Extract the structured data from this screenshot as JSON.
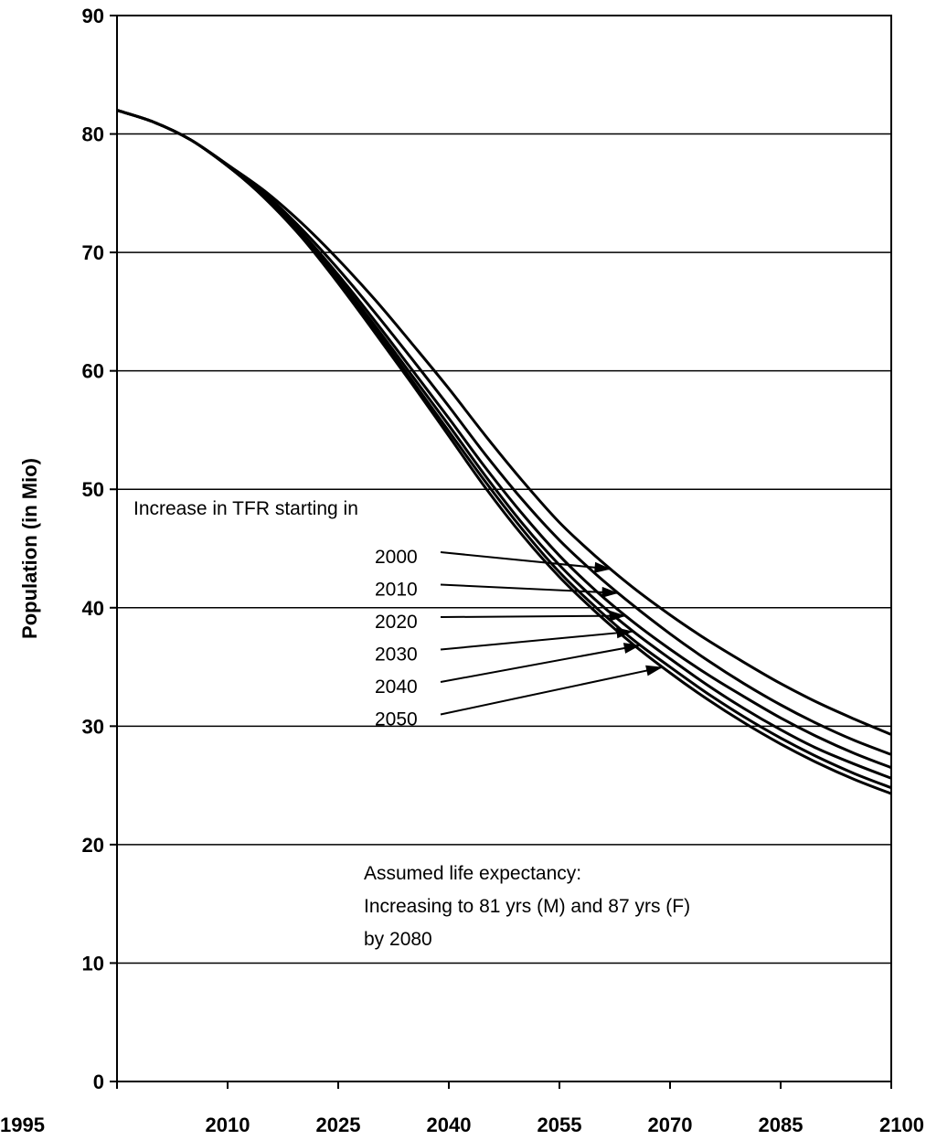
{
  "chart_data": {
    "type": "line",
    "xlabel": "",
    "ylabel": "Population (in Mio)",
    "xlim": [
      1995,
      2100
    ],
    "ylim": [
      0,
      90
    ],
    "x_ticks": [
      1995,
      2010,
      2025,
      2040,
      2055,
      2070,
      2085,
      2100
    ],
    "y_ticks": [
      0,
      10,
      20,
      30,
      40,
      50,
      60,
      70,
      80,
      90
    ],
    "grid": "horizontal",
    "legend_title": "Increase in TFR starting in",
    "x": [
      1995,
      2000,
      2005,
      2010,
      2015,
      2020,
      2025,
      2030,
      2035,
      2040,
      2045,
      2050,
      2055,
      2060,
      2065,
      2070,
      2075,
      2080,
      2085,
      2090,
      2095,
      2100
    ],
    "series": [
      {
        "name": "2000",
        "values": [
          82.0,
          81.0,
          79.5,
          77.4,
          75.2,
          72.5,
          69.4,
          66.0,
          62.3,
          58.5,
          54.5,
          50.7,
          47.2,
          44.3,
          41.7,
          39.4,
          37.3,
          35.4,
          33.6,
          32.0,
          30.6,
          29.3
        ]
      },
      {
        "name": "2010",
        "values": [
          82.0,
          81.0,
          79.5,
          77.4,
          75.0,
          72.0,
          68.6,
          64.9,
          61.0,
          57.0,
          52.9,
          49.1,
          45.7,
          42.8,
          40.2,
          37.8,
          35.6,
          33.6,
          31.8,
          30.2,
          28.8,
          27.6
        ]
      },
      {
        "name": "2020",
        "values": [
          82.0,
          81.0,
          79.5,
          77.3,
          74.8,
          71.7,
          68.1,
          64.2,
          60.1,
          56.0,
          51.8,
          47.9,
          44.4,
          41.4,
          38.8,
          36.5,
          34.4,
          32.5,
          30.7,
          29.1,
          27.7,
          26.5
        ]
      },
      {
        "name": "2030",
        "values": [
          82.0,
          81.0,
          79.5,
          77.3,
          74.7,
          71.5,
          67.8,
          63.8,
          59.6,
          55.4,
          51.1,
          47.1,
          43.6,
          40.6,
          38.0,
          35.7,
          33.5,
          31.5,
          29.7,
          28.1,
          26.8,
          25.6
        ]
      },
      {
        "name": "2040",
        "values": [
          82.0,
          81.0,
          79.5,
          77.3,
          74.7,
          71.4,
          67.6,
          63.5,
          59.2,
          54.9,
          50.6,
          46.6,
          43.0,
          40.0,
          37.3,
          35.0,
          32.8,
          30.8,
          29.0,
          27.4,
          26.0,
          24.8
        ]
      },
      {
        "name": "2050",
        "values": [
          82.0,
          81.0,
          79.5,
          77.3,
          74.6,
          71.3,
          67.4,
          63.2,
          58.9,
          54.5,
          50.1,
          46.1,
          42.6,
          39.6,
          36.9,
          34.5,
          32.3,
          30.3,
          28.5,
          26.9,
          25.5,
          24.3
        ]
      }
    ],
    "annotations": [
      "Assumed life expectancy:",
      "Increasing to 81 yrs (M) and 87 yrs (F)",
      "by 2080"
    ]
  }
}
